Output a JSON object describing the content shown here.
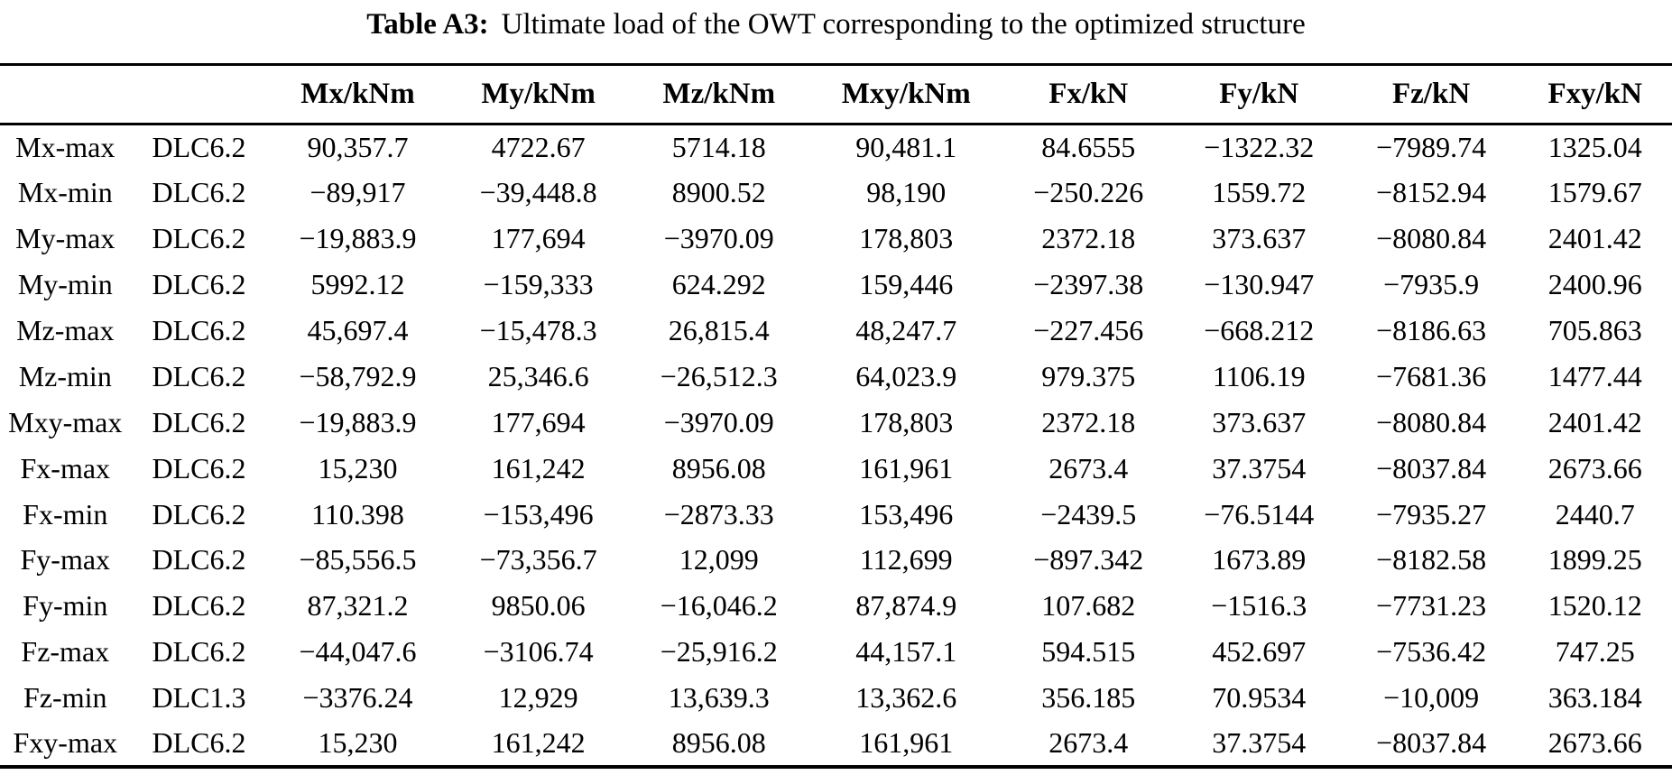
{
  "title": {
    "label": "Table A3:",
    "text": "Ultimate load of the OWT corresponding to the optimized structure"
  },
  "table": {
    "columns": [
      "",
      "",
      "Mx/kNm",
      "My/kNm",
      "Mz/kNm",
      "Mxy/kNm",
      "Fx/kN",
      "Fy/kN",
      "Fz/kN",
      "Fxy/kN"
    ],
    "rows": [
      {
        "label": "Mx-max",
        "dlc": "DLC6.2",
        "values": [
          "90,357.7",
          "4722.67",
          "5714.18",
          "90,481.1",
          "84.6555",
          "−1322.32",
          "−7989.74",
          "1325.04"
        ]
      },
      {
        "label": "Mx-min",
        "dlc": "DLC6.2",
        "values": [
          "−89,917",
          "−39,448.8",
          "8900.52",
          "98,190",
          "−250.226",
          "1559.72",
          "−8152.94",
          "1579.67"
        ]
      },
      {
        "label": "My-max",
        "dlc": "DLC6.2",
        "values": [
          "−19,883.9",
          "177,694",
          "−3970.09",
          "178,803",
          "2372.18",
          "373.637",
          "−8080.84",
          "2401.42"
        ]
      },
      {
        "label": "My-min",
        "dlc": "DLC6.2",
        "values": [
          "5992.12",
          "−159,333",
          "624.292",
          "159,446",
          "−2397.38",
          "−130.947",
          "−7935.9",
          "2400.96"
        ]
      },
      {
        "label": "Mz-max",
        "dlc": "DLC6.2",
        "values": [
          "45,697.4",
          "−15,478.3",
          "26,815.4",
          "48,247.7",
          "−227.456",
          "−668.212",
          "−8186.63",
          "705.863"
        ]
      },
      {
        "label": "Mz-min",
        "dlc": "DLC6.2",
        "values": [
          "−58,792.9",
          "25,346.6",
          "−26,512.3",
          "64,023.9",
          "979.375",
          "1106.19",
          "−7681.36",
          "1477.44"
        ]
      },
      {
        "label": "Mxy-max",
        "dlc": "DLC6.2",
        "values": [
          "−19,883.9",
          "177,694",
          "−3970.09",
          "178,803",
          "2372.18",
          "373.637",
          "−8080.84",
          "2401.42"
        ]
      },
      {
        "label": "Fx-max",
        "dlc": "DLC6.2",
        "values": [
          "15,230",
          "161,242",
          "8956.08",
          "161,961",
          "2673.4",
          "37.3754",
          "−8037.84",
          "2673.66"
        ]
      },
      {
        "label": "Fx-min",
        "dlc": "DLC6.2",
        "values": [
          "110.398",
          "−153,496",
          "−2873.33",
          "153,496",
          "−2439.5",
          "−76.5144",
          "−7935.27",
          "2440.7"
        ]
      },
      {
        "label": "Fy-max",
        "dlc": "DLC6.2",
        "values": [
          "−85,556.5",
          "−73,356.7",
          "12,099",
          "112,699",
          "−897.342",
          "1673.89",
          "−8182.58",
          "1899.25"
        ]
      },
      {
        "label": "Fy-min",
        "dlc": "DLC6.2",
        "values": [
          "87,321.2",
          "9850.06",
          "−16,046.2",
          "87,874.9",
          "107.682",
          "−1516.3",
          "−7731.23",
          "1520.12"
        ]
      },
      {
        "label": "Fz-max",
        "dlc": "DLC6.2",
        "values": [
          "−44,047.6",
          "−3106.74",
          "−25,916.2",
          "44,157.1",
          "594.515",
          "452.697",
          "−7536.42",
          "747.25"
        ]
      },
      {
        "label": "Fz-min",
        "dlc": "DLC1.3",
        "values": [
          "−3376.24",
          "12,929",
          "13,639.3",
          "13,362.6",
          "356.185",
          "70.9534",
          "−10,009",
          "363.184"
        ]
      },
      {
        "label": "Fxy-max",
        "dlc": "DLC6.2",
        "values": [
          "15,230",
          "161,242",
          "8956.08",
          "161,961",
          "2673.4",
          "37.3754",
          "−8037.84",
          "2673.66"
        ]
      }
    ]
  }
}
